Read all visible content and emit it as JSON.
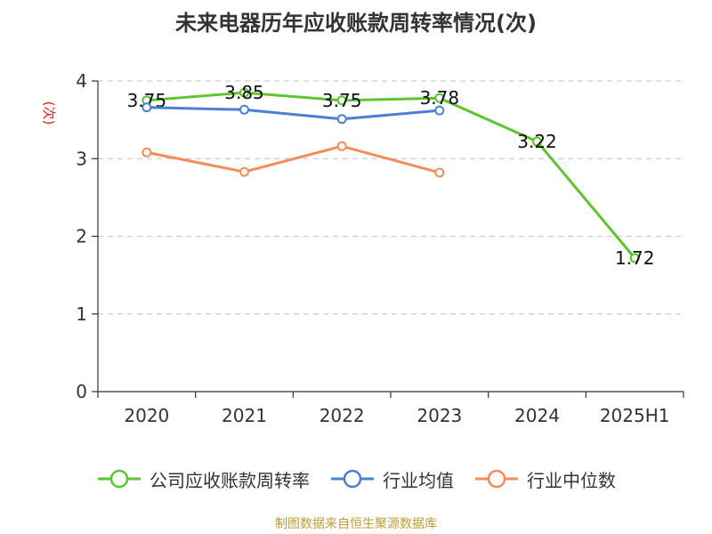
{
  "title": "未来电器历年应收账款周转率情况(次)",
  "source": "制图数据来自恒生聚源数据库",
  "chart_data": {
    "type": "line",
    "title": "未来电器历年应收账款周转率情况(次)",
    "ylabel": "(次)",
    "xlabel": "",
    "categories": [
      "2020",
      "2021",
      "2022",
      "2023",
      "2024",
      "2025H1"
    ],
    "ylim": [
      0,
      4
    ],
    "yticks": [
      0,
      1,
      2,
      3,
      4
    ],
    "grid": true,
    "legend_position": "bottom",
    "series": [
      {
        "name": "公司应收账款周转率",
        "color": "#5ec42c",
        "values": [
          3.75,
          3.85,
          3.75,
          3.78,
          3.22,
          1.72
        ],
        "labels": [
          "3.75",
          "3.85",
          "3.75",
          "3.78",
          "3.22",
          "1.72"
        ]
      },
      {
        "name": "行业均值",
        "color": "#4a7fd4",
        "values": [
          3.66,
          3.63,
          3.51,
          3.62,
          null,
          null
        ]
      },
      {
        "name": "行业中位数",
        "color": "#f58c5a",
        "values": [
          3.08,
          2.83,
          3.16,
          2.82,
          null,
          null
        ]
      }
    ]
  }
}
